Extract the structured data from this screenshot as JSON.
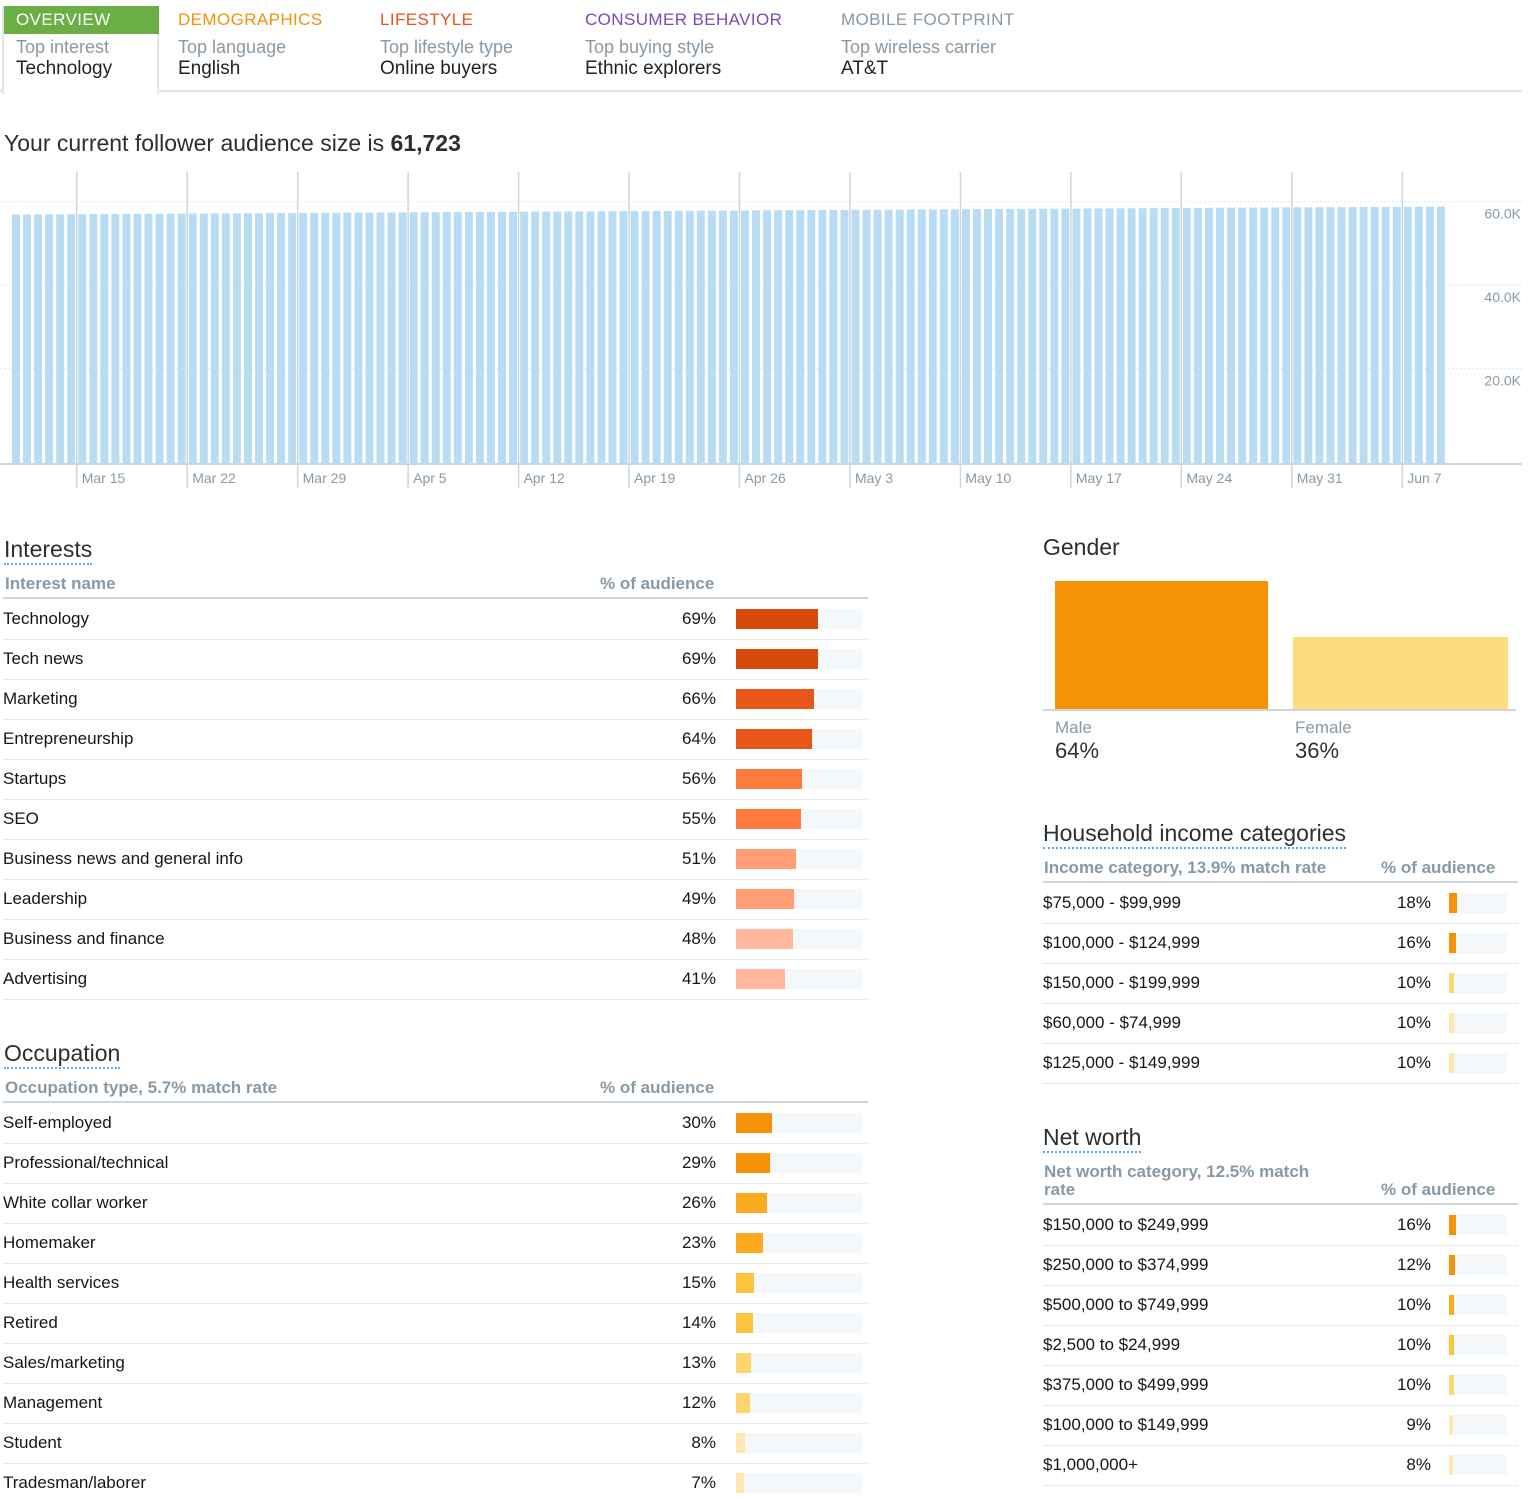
{
  "tabs": [
    {
      "title": "OVERVIEW",
      "sub": "Top interest",
      "value": "Technology",
      "color": "#ffffff"
    },
    {
      "title": "DEMOGRAPHICS",
      "sub": "Top language",
      "value": "English",
      "color": "#f59208"
    },
    {
      "title": "LIFESTYLE",
      "sub": "Top lifestyle type",
      "value": "Online buyers",
      "color": "#e8541c"
    },
    {
      "title": "CONSUMER BEHAVIOR",
      "sub": "Top buying style",
      "value": "Ethnic explorers",
      "color": "#7f47b8"
    },
    {
      "title": "MOBILE FOOTPRINT",
      "sub": "Top wireless carrier",
      "value": "AT&T",
      "color": "#8899a6"
    }
  ],
  "audience": {
    "prefix": "Your current follower audience size is",
    "size": "61,723"
  },
  "chart_data": {
    "type": "bar",
    "bar_count": 130,
    "start_value": 59800,
    "end_value": 61723,
    "ylim": [
      0,
      70000
    ],
    "y_ticks": [
      {
        "value": 60000,
        "label": "60.0K"
      },
      {
        "value": 40000,
        "label": "40.0K"
      },
      {
        "value": 20000,
        "label": "20.0K"
      }
    ],
    "x_ticks": [
      {
        "bar": 6,
        "label": "Mar 15"
      },
      {
        "bar": 16,
        "label": "Mar 22"
      },
      {
        "bar": 26,
        "label": "Mar 29"
      },
      {
        "bar": 36,
        "label": "Apr 5"
      },
      {
        "bar": 46,
        "label": "Apr 12"
      },
      {
        "bar": 56,
        "label": "Apr 19"
      },
      {
        "bar": 66,
        "label": "Apr 26"
      },
      {
        "bar": 76,
        "label": "May 3"
      },
      {
        "bar": 86,
        "label": "May 10"
      },
      {
        "bar": 96,
        "label": "May 17"
      },
      {
        "bar": 106,
        "label": "May 24"
      },
      {
        "bar": 116,
        "label": "May 31"
      },
      {
        "bar": 126,
        "label": "Jun 7"
      }
    ],
    "bar_color": "#b9dcf5"
  },
  "interests": {
    "title": "Interests",
    "col_name": "Interest name",
    "col_pct": "% of audience",
    "rows": [
      {
        "label": "Technology",
        "pct": "69%",
        "value": 69,
        "color": "#d64b0c"
      },
      {
        "label": "Tech news",
        "pct": "69%",
        "value": 69,
        "color": "#d64b0c"
      },
      {
        "label": "Marketing",
        "pct": "66%",
        "value": 66,
        "color": "#e8561a"
      },
      {
        "label": "Entrepreneurship",
        "pct": "64%",
        "value": 64,
        "color": "#e8561a"
      },
      {
        "label": "Startups",
        "pct": "56%",
        "value": 56,
        "color": "#ff7a3d"
      },
      {
        "label": "SEO",
        "pct": "55%",
        "value": 55,
        "color": "#ff7a3d"
      },
      {
        "label": "Business news and general info",
        "pct": "51%",
        "value": 51,
        "color": "#ff9e75"
      },
      {
        "label": "Leadership",
        "pct": "49%",
        "value": 49,
        "color": "#ff9e75"
      },
      {
        "label": "Business and finance",
        "pct": "48%",
        "value": 48,
        "color": "#ffb89c"
      },
      {
        "label": "Advertising",
        "pct": "41%",
        "value": 41,
        "color": "#ffb89c"
      }
    ]
  },
  "occupation": {
    "title": "Occupation",
    "col_name": "Occupation type, 5.7% match rate",
    "col_pct": "% of audience",
    "rows": [
      {
        "label": "Self-employed",
        "pct": "30%",
        "value": 30,
        "color": "#f59208"
      },
      {
        "label": "Professional/technical",
        "pct": "29%",
        "value": 29,
        "color": "#f59208"
      },
      {
        "label": "White collar worker",
        "pct": "26%",
        "value": 26,
        "color": "#fcaa1e"
      },
      {
        "label": "Homemaker",
        "pct": "23%",
        "value": 23,
        "color": "#fcaa1e"
      },
      {
        "label": "Health services",
        "pct": "15%",
        "value": 15,
        "color": "#fcc33e"
      },
      {
        "label": "Retired",
        "pct": "14%",
        "value": 14,
        "color": "#fcc33e"
      },
      {
        "label": "Sales/marketing",
        "pct": "13%",
        "value": 13,
        "color": "#fdd56f"
      },
      {
        "label": "Management",
        "pct": "12%",
        "value": 12,
        "color": "#fdd56f"
      },
      {
        "label": "Student",
        "pct": "8%",
        "value": 8,
        "color": "#fee8b0"
      },
      {
        "label": "Tradesman/laborer",
        "pct": "7%",
        "value": 7,
        "color": "#fee8b0"
      }
    ]
  },
  "gender": {
    "title": "Gender",
    "male_label": "Male",
    "male_pct": "64%",
    "male_value": 64,
    "male_color": "#f59208",
    "female_label": "Female",
    "female_pct": "36%",
    "female_value": 36,
    "female_color": "#fddc7e"
  },
  "income": {
    "title": "Household income categories",
    "col_name": "Income category, 13.9% match rate",
    "col_pct": "% of audience",
    "rows": [
      {
        "label": "$75,000 - $99,999",
        "pct": "18%",
        "value": 18,
        "color": "#f59208"
      },
      {
        "label": "$100,000 - $124,999",
        "pct": "16%",
        "value": 16,
        "color": "#f59208"
      },
      {
        "label": "$150,000 - $199,999",
        "pct": "10%",
        "value": 10,
        "color": "#fdd56f"
      },
      {
        "label": "$60,000 - $74,999",
        "pct": "10%",
        "value": 10,
        "color": "#fee8b0"
      },
      {
        "label": "$125,000 - $149,999",
        "pct": "10%",
        "value": 10,
        "color": "#fee8b0"
      }
    ]
  },
  "networth": {
    "title": "Net worth",
    "col_name_1": "Net worth category, 12.5% match",
    "col_name_2": "rate",
    "col_pct": "% of audience",
    "rows": [
      {
        "label": "$150,000 to $249,999",
        "pct": "16%",
        "value": 16,
        "color": "#f59208"
      },
      {
        "label": "$250,000 to $374,999",
        "pct": "12%",
        "value": 12,
        "color": "#f59208"
      },
      {
        "label": "$500,000 to $749,999",
        "pct": "10%",
        "value": 10,
        "color": "#fcaa1e"
      },
      {
        "label": "$2,500 to $24,999",
        "pct": "10%",
        "value": 10,
        "color": "#fcc33e"
      },
      {
        "label": "$375,000 to $499,999",
        "pct": "10%",
        "value": 10,
        "color": "#fdd56f"
      },
      {
        "label": "$100,000 to $149,999",
        "pct": "9%",
        "value": 9,
        "color": "#fee8b0"
      },
      {
        "label": "$1,000,000+",
        "pct": "8%",
        "value": 8,
        "color": "#fee8b0"
      }
    ]
  }
}
